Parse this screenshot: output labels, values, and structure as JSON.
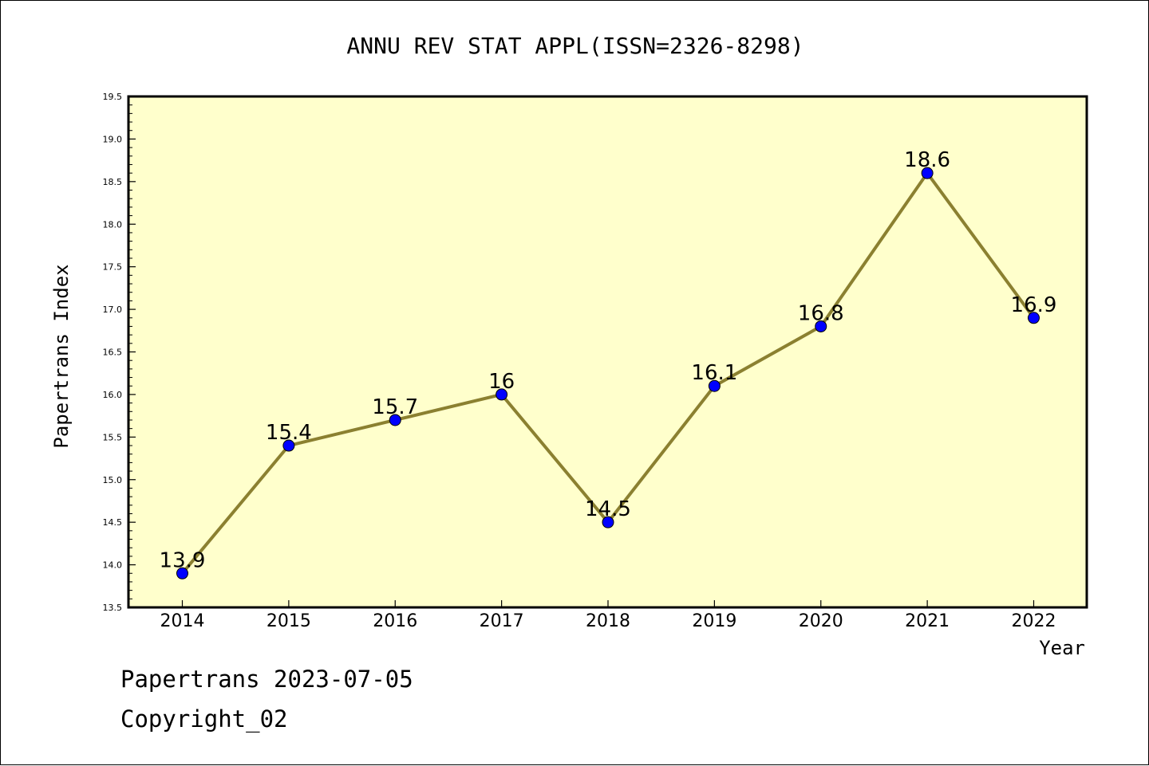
{
  "chart_data": {
    "type": "line",
    "title": "ANNU REV STAT APPL(ISSN=2326-8298)",
    "xlabel": "Year",
    "ylabel": "Papertrans Index",
    "categories": [
      "2014",
      "2015",
      "2016",
      "2017",
      "2018",
      "2019",
      "2020",
      "2021",
      "2022"
    ],
    "series": [
      {
        "values": [
          13.9,
          15.4,
          15.7,
          16,
          14.5,
          16.1,
          16.8,
          18.6,
          16.9
        ],
        "labels": [
          "13.9",
          "15.4",
          "15.7",
          "16",
          "14.5",
          "16.1",
          "16.8",
          "18.6",
          "16.9"
        ]
      }
    ],
    "ylim": [
      13.5,
      19.5
    ],
    "yticks": [
      "13.5",
      "14.0",
      "14.5",
      "15.0",
      "15.5",
      "16.0",
      "16.5",
      "17.0",
      "17.5",
      "18.0",
      "18.5",
      "19.0",
      "19.5"
    ],
    "grid": false,
    "legend": "none",
    "colors": {
      "plot_background": "#ffffcc",
      "line": "#8b8030",
      "marker": "#0000ff"
    }
  },
  "footer": {
    "source": "Papertrans 2023-07-05",
    "copyright": "Copyright_02"
  }
}
